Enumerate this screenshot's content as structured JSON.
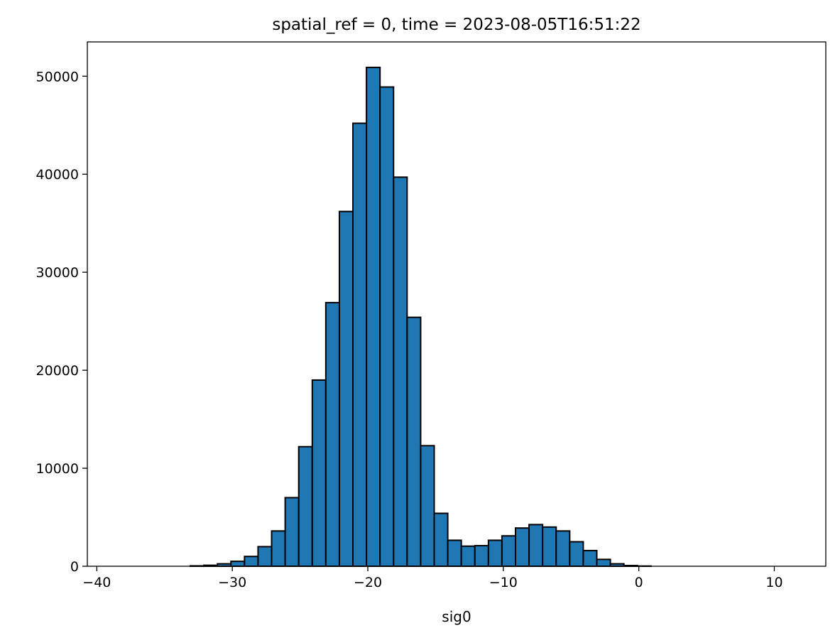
{
  "chart_data": {
    "type": "bar",
    "title": "spatial_ref = 0, time = 2023-08-05T16:51:22",
    "xlabel": "sig0",
    "ylabel": "",
    "xlim": [
      -40.7,
      13.8
    ],
    "ylim": [
      0,
      53500
    ],
    "x_ticks": [
      -40,
      -30,
      -20,
      -10,
      0,
      10
    ],
    "x_tick_labels": [
      "−40",
      "−30",
      "−20",
      "−10",
      "0",
      "10"
    ],
    "y_ticks": [
      0,
      10000,
      20000,
      30000,
      40000,
      50000
    ],
    "y_tick_labels": [
      "0",
      "10000",
      "20000",
      "30000",
      "40000",
      "50000"
    ],
    "bin_edges": [
      -40.1,
      -39.1,
      -38.1,
      -37.1,
      -36.1,
      -35.1,
      -34.1,
      -33.1,
      -32.1,
      -31.1,
      -30.1,
      -29.1,
      -28.1,
      -27.1,
      -26.1,
      -25.1,
      -24.1,
      -23.1,
      -22.1,
      -21.1,
      -20.1,
      -19.1,
      -18.1,
      -17.1,
      -16.1,
      -15.1,
      -14.1,
      -13.1,
      -12.1,
      -11.1,
      -10.1,
      -9.1,
      -8.1,
      -7.1,
      -6.1,
      -5.1,
      -4.1,
      -3.1,
      -2.1,
      -1.1,
      -0.1,
      0.9,
      1.9,
      2.9,
      3.9,
      4.9,
      5.9,
      6.9,
      7.9,
      8.9,
      9.9,
      10.9,
      11.9
    ],
    "counts": [
      0,
      0,
      0,
      0,
      0,
      0,
      0,
      40,
      100,
      250,
      500,
      1000,
      2000,
      3600,
      7000,
      12200,
      19000,
      26900,
      36200,
      45200,
      50900,
      48900,
      39700,
      25400,
      12300,
      5400,
      2650,
      2050,
      2100,
      2650,
      3100,
      3900,
      4250,
      4000,
      3600,
      2500,
      1600,
      700,
      250,
      70,
      20,
      0,
      0,
      0,
      0,
      0,
      0,
      0,
      0,
      0,
      0,
      0
    ],
    "bar_color": "#1f77b4",
    "edge_color": "#000000",
    "grid": false
  }
}
